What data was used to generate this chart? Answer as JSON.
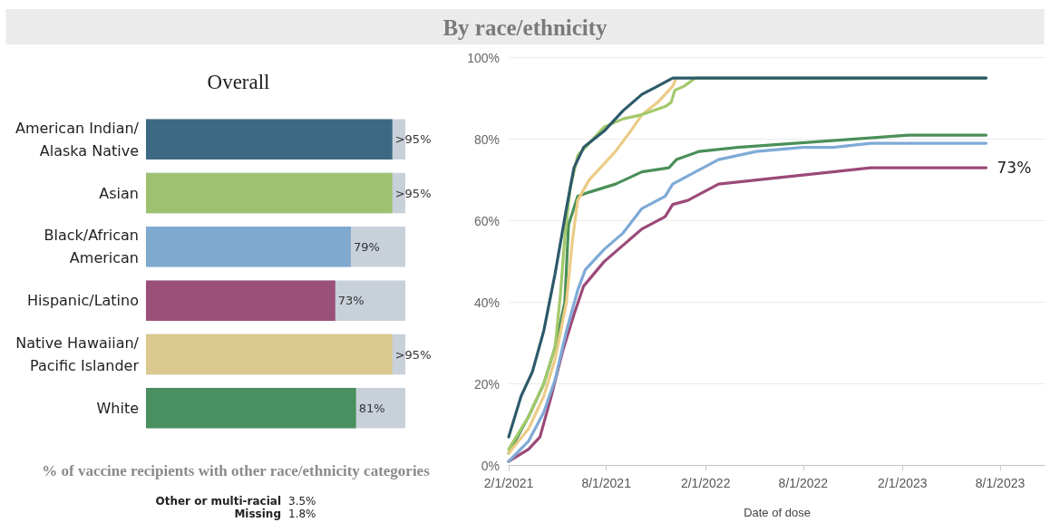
{
  "chart_data": [
    {
      "type": "bar",
      "title": "Overall",
      "orientation": "horizontal",
      "tick_labels": "y",
      "xlim": [
        0,
        100
      ],
      "categories": [
        "American Indian/Alaska Native",
        "Asian",
        "Black/African American",
        "Hispanic/Latino",
        "Native Hawaiian/Pacific Islander",
        "White"
      ],
      "values": [
        95,
        95,
        79,
        73,
        95,
        81
      ],
      "colors": [
        "#3d6a82",
        "#9dc170",
        "#80a9d0",
        "#9a5079",
        "#dac88f",
        "#4a8f5f"
      ],
      "value_labels": [
        ">95%",
        ">95%",
        "79%",
        "73%",
        ">95%",
        "81%"
      ]
    },
    {
      "type": "line",
      "title": "By race/ethnicity",
      "xlabel": "Date of dose",
      "grid": "y",
      "xlim": [
        "2021-02-01",
        "2023-10-24"
      ],
      "xticks": [
        {
          "value": "2021-02-01",
          "label": "2/1/2021"
        },
        {
          "value": "2021-08-01",
          "label": "8/1/2021"
        },
        {
          "value": "2022-02-01",
          "label": "2/1/2022"
        },
        {
          "value": "2022-08-01",
          "label": "8/1/2022"
        },
        {
          "value": "2023-02-01",
          "label": "2/1/2023"
        },
        {
          "value": "2023-08-01",
          "label": "8/1/2023"
        }
      ],
      "ylim": [
        0,
        100
      ],
      "yticks": [
        {
          "value": 0,
          "label": "0%"
        },
        {
          "value": 20,
          "label": "20%"
        },
        {
          "value": 40,
          "label": "40%"
        },
        {
          "value": 60,
          "label": "60%"
        },
        {
          "value": 80,
          "label": "80%"
        },
        {
          "value": 100,
          "label": "100%"
        }
      ],
      "series": [
        {
          "color": "#9b4a78",
          "x": [
            "2021-02-01",
            "2021-03-10",
            "2021-03-31",
            "2021-04-21",
            "2021-05-12",
            "2021-06-02",
            "2021-06-20",
            "2021-07-28",
            "2021-09-01",
            "2021-10-06",
            "2021-11-18",
            "2021-12-02",
            "2021-12-30",
            "2022-02-25",
            "2022-05-06",
            "2022-07-16",
            "2022-09-25",
            "2022-12-04",
            "2023-07-06"
          ],
          "values": [
            1,
            4,
            7,
            17,
            28,
            37,
            44,
            50,
            54,
            58,
            61,
            64,
            65,
            69,
            70,
            71,
            72,
            73,
            73
          ],
          "value_labels": [
            null,
            null,
            null,
            null,
            null,
            null,
            null,
            null,
            null,
            null,
            null,
            null,
            null,
            null,
            null,
            null,
            null,
            null,
            "73%"
          ]
        },
        {
          "color": "#7eaad6",
          "x": [
            "2021-02-01",
            "2021-03-10",
            "2021-04-07",
            "2021-04-28",
            "2021-05-19",
            "2021-06-09",
            "2021-06-23",
            "2021-07-28",
            "2021-09-01",
            "2021-10-06",
            "2021-11-18",
            "2021-12-02",
            "2021-12-30",
            "2022-02-25",
            "2022-05-06",
            "2022-07-30",
            "2022-09-25",
            "2022-12-04",
            "2023-07-06"
          ],
          "values": [
            1,
            6,
            13,
            21,
            33,
            43,
            48,
            53,
            57,
            63,
            66,
            69,
            71,
            75,
            77,
            78,
            78,
            79,
            79
          ]
        },
        {
          "color": "#4a9058",
          "x": [
            "2021-02-01",
            "2021-03-10",
            "2021-04-07",
            "2021-04-28",
            "2021-05-16",
            "2021-05-23",
            "2021-06-09",
            "2021-06-30",
            "2021-08-18",
            "2021-10-06",
            "2021-11-25",
            "2021-12-09",
            "2022-01-20",
            "2022-04-01",
            "2022-07-16",
            "2022-10-30",
            "2023-02-12",
            "2023-07-06"
          ],
          "values": [
            3,
            12,
            20,
            29,
            40,
            59,
            66,
            67,
            69,
            72,
            73,
            75,
            77,
            78,
            79,
            80,
            81,
            81
          ]
        },
        {
          "color": "#ebcb85",
          "x": [
            "2021-02-01",
            "2021-03-10",
            "2021-04-07",
            "2021-04-28",
            "2021-05-19",
            "2021-05-30",
            "2021-06-09",
            "2021-06-30",
            "2021-07-28",
            "2021-08-18",
            "2021-09-15",
            "2021-10-06",
            "2021-11-04",
            "2021-12-02",
            "2021-12-09"
          ],
          "values": [
            3,
            9,
            17,
            26,
            40,
            55,
            65,
            70,
            74,
            77,
            82,
            86,
            89,
            93,
            95
          ]
        },
        {
          "color": "#a3c96b",
          "x": [
            "2021-02-01",
            "2021-03-10",
            "2021-04-07",
            "2021-04-28",
            "2021-05-08",
            "2021-05-16",
            "2021-05-26",
            "2021-06-09",
            "2021-06-30",
            "2021-07-28",
            "2021-09-01",
            "2021-10-06",
            "2021-11-18",
            "2021-11-29",
            "2021-12-06",
            "2021-12-23",
            "2022-01-13",
            "2023-07-06"
          ],
          "values": [
            4,
            12,
            20,
            29,
            42,
            56,
            68,
            76,
            79,
            83,
            85,
            86,
            88,
            89,
            92,
            93,
            95,
            95
          ]
        },
        {
          "color": "#2c5a6a",
          "x": [
            "2021-02-01",
            "2021-02-24",
            "2021-03-17",
            "2021-04-07",
            "2021-04-28",
            "2021-05-19",
            "2021-06-02",
            "2021-06-20",
            "2021-07-28",
            "2021-09-01",
            "2021-10-06",
            "2021-11-04",
            "2021-12-02",
            "2023-07-06"
          ],
          "values": [
            7,
            17,
            23,
            33,
            47,
            63,
            73,
            78,
            82,
            87,
            91,
            93,
            95,
            95
          ]
        }
      ]
    },
    {
      "type": "other",
      "title": "% of vaccine recipients with other race/ethnicity categories",
      "categories": [
        "Other or multi-racial",
        "Missing"
      ],
      "value_labels": [
        "3.5%",
        "1.8%"
      ]
    }
  ]
}
